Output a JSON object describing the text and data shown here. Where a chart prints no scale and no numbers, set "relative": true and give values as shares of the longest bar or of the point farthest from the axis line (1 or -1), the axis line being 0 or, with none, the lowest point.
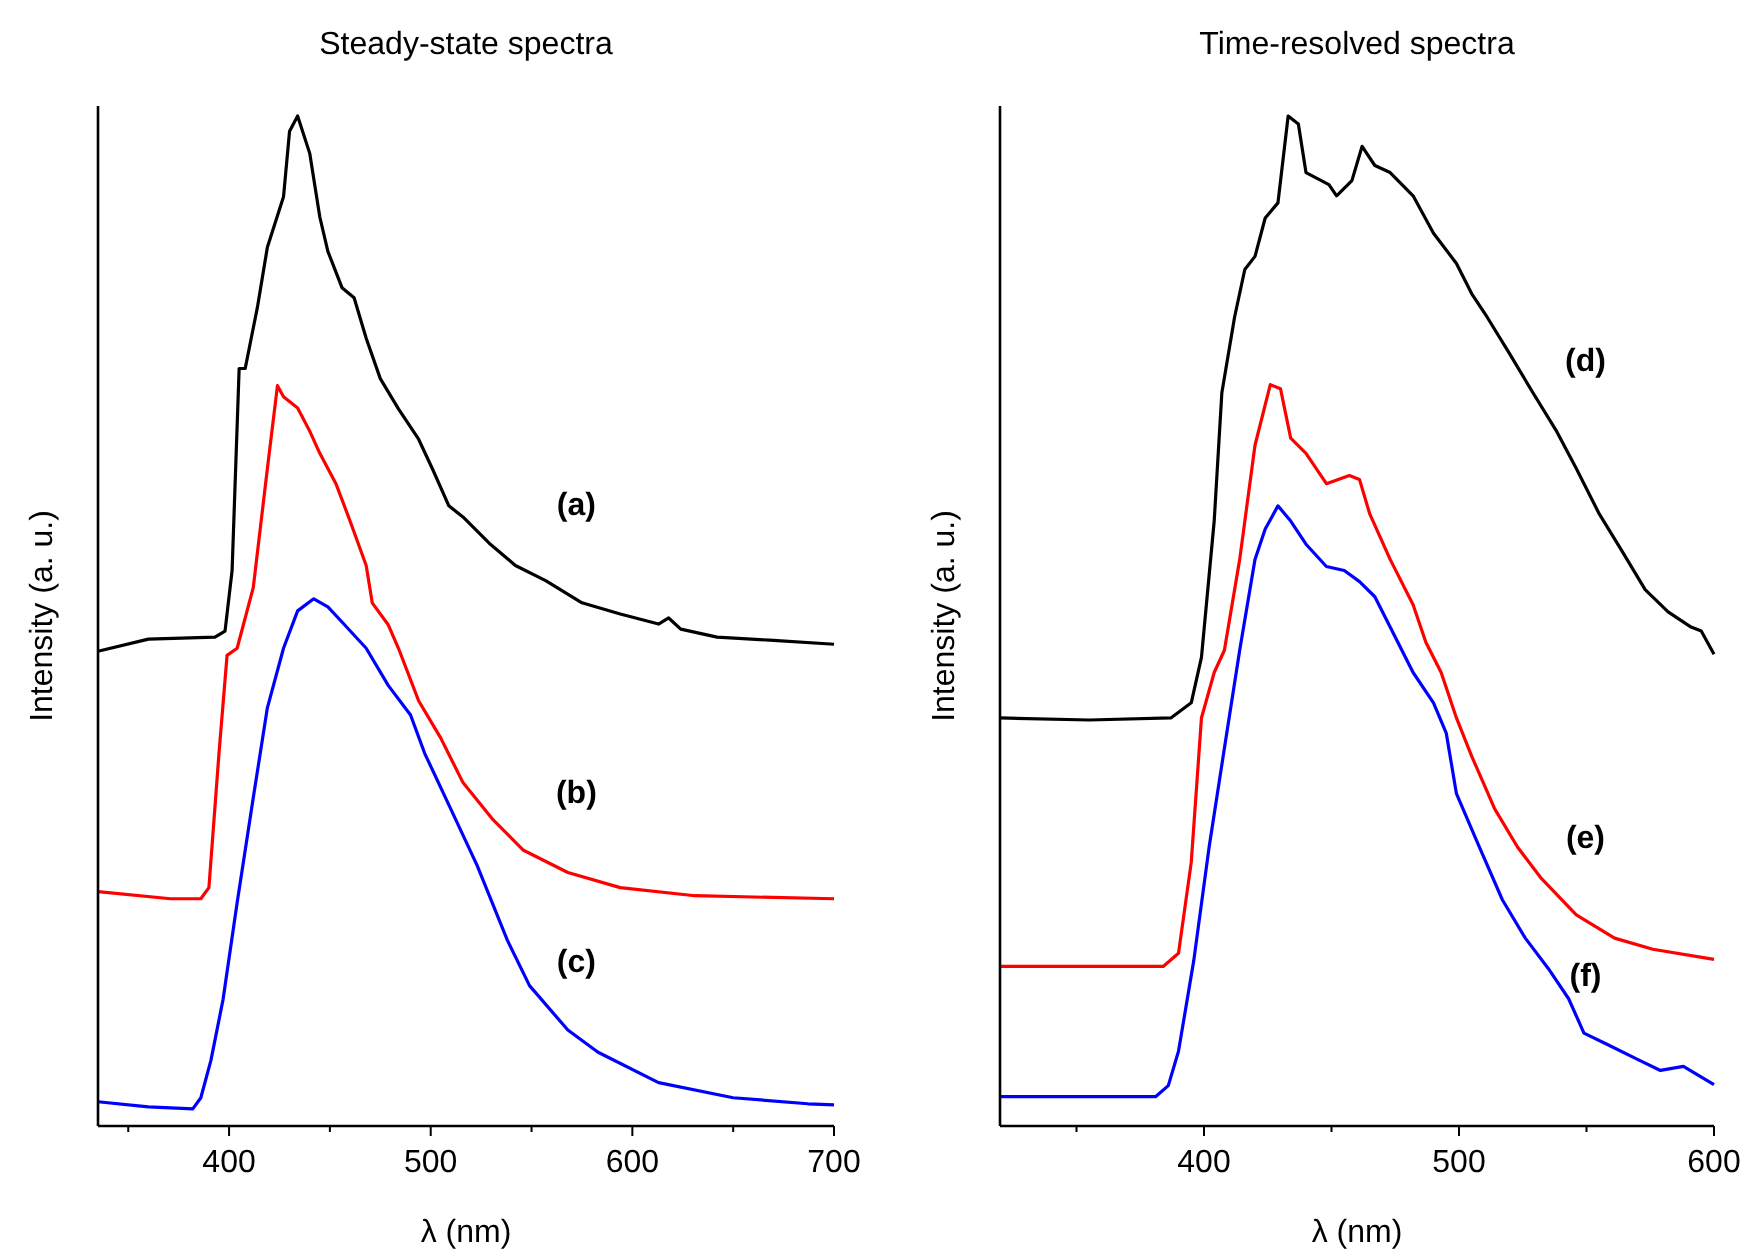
{
  "chart_data": [
    {
      "type": "line",
      "title": "Steady-state spectra",
      "xlabel": "λ (nm)",
      "ylabel": "Intensity (a. u.)",
      "relative": true,
      "tick_labels": "x",
      "xlim": [
        335,
        700
      ],
      "xticks": [
        {
          "value": 350,
          "label": null
        },
        400,
        {
          "value": 450,
          "label": null
        },
        500,
        {
          "value": 550,
          "label": null
        },
        600,
        {
          "value": 650,
          "label": null
        },
        700
      ],
      "series": [
        {
          "name": "(a)",
          "color": "#000000",
          "x": [
            335,
            360,
            393,
            398,
            401.5,
            405,
            408,
            414,
            419,
            427,
            430,
            434,
            440,
            445,
            449,
            456,
            462,
            468,
            475,
            484,
            494,
            501,
            509,
            516,
            529,
            542,
            557,
            575,
            594,
            613,
            618,
            624,
            642,
            668,
            700
          ],
          "values": [
            0.47,
            0.482,
            0.484,
            0.49,
            0.55,
            0.75,
            0.75,
            0.81,
            0.87,
            0.92,
            0.985,
            1,
            0.963,
            0.9,
            0.866,
            0.83,
            0.82,
            0.78,
            0.74,
            0.71,
            0.68,
            0.65,
            0.614,
            0.603,
            0.577,
            0.555,
            0.54,
            0.518,
            0.507,
            0.497,
            0.503,
            0.492,
            0.484,
            0.481,
            0.477
          ]
        },
        {
          "name": "(b)",
          "color": "#ff0000",
          "x": [
            335,
            371,
            386,
            390,
            395,
            399,
            404,
            412,
            419,
            424,
            427,
            434,
            440,
            445,
            453,
            460,
            468,
            471,
            479,
            484,
            494,
            505,
            516,
            531,
            546,
            568,
            594,
            631,
            700
          ],
          "values": [
            0.232,
            0.225,
            0.225,
            0.236,
            0.369,
            0.466,
            0.473,
            0.533,
            0.651,
            0.733,
            0.722,
            0.711,
            0.688,
            0.666,
            0.636,
            0.599,
            0.555,
            0.518,
            0.496,
            0.473,
            0.421,
            0.384,
            0.34,
            0.303,
            0.273,
            0.251,
            0.236,
            0.228,
            0.225
          ]
        },
        {
          "name": "(c)",
          "color": "#0000ff",
          "x": [
            335,
            360,
            382,
            386,
            391,
            397,
            404,
            412,
            419,
            427,
            434,
            442,
            449,
            456,
            468,
            479,
            490,
            497,
            509,
            523,
            538,
            549,
            568,
            583,
            613,
            650,
            687,
            700
          ],
          "values": [
            0.024,
            0.019,
            0.017,
            0.028,
            0.065,
            0.125,
            0.221,
            0.325,
            0.414,
            0.473,
            0.51,
            0.522,
            0.514,
            0.499,
            0.473,
            0.436,
            0.407,
            0.369,
            0.318,
            0.258,
            0.184,
            0.139,
            0.095,
            0.073,
            0.043,
            0.028,
            0.022,
            0.021
          ]
        }
      ]
    },
    {
      "type": "line",
      "title": "Time-resolved spectra",
      "xlabel": "λ (nm)",
      "ylabel": "Intensity (a. u.)",
      "relative": true,
      "tick_labels": "x",
      "xlim": [
        320,
        600
      ],
      "xticks": [
        {
          "value": 350,
          "label": null
        },
        400,
        {
          "value": 450,
          "label": null
        },
        500,
        {
          "value": 550,
          "label": null
        },
        600
      ],
      "series": [
        {
          "name": "(d)",
          "color": "#000000",
          "x": [
            320,
            355,
            387,
            395,
            399,
            404,
            407,
            412,
            416,
            420,
            424,
            429,
            433,
            437,
            440,
            449,
            452,
            458,
            462,
            467,
            473,
            482,
            490,
            499,
            505,
            511,
            520,
            529,
            538,
            546,
            555,
            564,
            573,
            582,
            591,
            595,
            600
          ],
          "values": [
            0.404,
            0.402,
            0.404,
            0.419,
            0.464,
            0.599,
            0.726,
            0.801,
            0.848,
            0.861,
            0.899,
            0.914,
            1,
            0.992,
            0.944,
            0.932,
            0.921,
            0.936,
            0.97,
            0.951,
            0.944,
            0.921,
            0.884,
            0.854,
            0.824,
            0.801,
            0.764,
            0.726,
            0.689,
            0.651,
            0.606,
            0.569,
            0.531,
            0.509,
            0.494,
            0.49,
            0.467
          ]
        },
        {
          "name": "(e)",
          "color": "#ff0000",
          "x": [
            320,
            384,
            390,
            395,
            399,
            404,
            408,
            414,
            420,
            426,
            430,
            434,
            440,
            448,
            457,
            461,
            465,
            473,
            482,
            487,
            493,
            499,
            505,
            514,
            523,
            532,
            546,
            561,
            576,
            600
          ],
          "values": [
            0.158,
            0.158,
            0.171,
            0.261,
            0.404,
            0.449,
            0.471,
            0.561,
            0.674,
            0.734,
            0.73,
            0.681,
            0.666,
            0.636,
            0.644,
            0.64,
            0.606,
            0.561,
            0.516,
            0.479,
            0.449,
            0.404,
            0.366,
            0.314,
            0.276,
            0.246,
            0.209,
            0.186,
            0.175,
            0.165
          ]
        },
        {
          "name": "(f)",
          "color": "#0000ff",
          "x": [
            320,
            381,
            386,
            390,
            396,
            402,
            408,
            414,
            420,
            424,
            429,
            434,
            440,
            448,
            455,
            461,
            467,
            473,
            482,
            490,
            495,
            499,
            508,
            517,
            526,
            535,
            543,
            549,
            558,
            570,
            579,
            588,
            600
          ],
          "values": [
            0.029,
            0.029,
            0.04,
            0.074,
            0.164,
            0.276,
            0.374,
            0.471,
            0.561,
            0.591,
            0.614,
            0.599,
            0.576,
            0.554,
            0.55,
            0.539,
            0.524,
            0.494,
            0.449,
            0.419,
            0.389,
            0.329,
            0.276,
            0.224,
            0.186,
            0.156,
            0.126,
            0.092,
            0.081,
            0.066,
            0.055,
            0.059,
            0.041
          ]
        }
      ]
    }
  ]
}
